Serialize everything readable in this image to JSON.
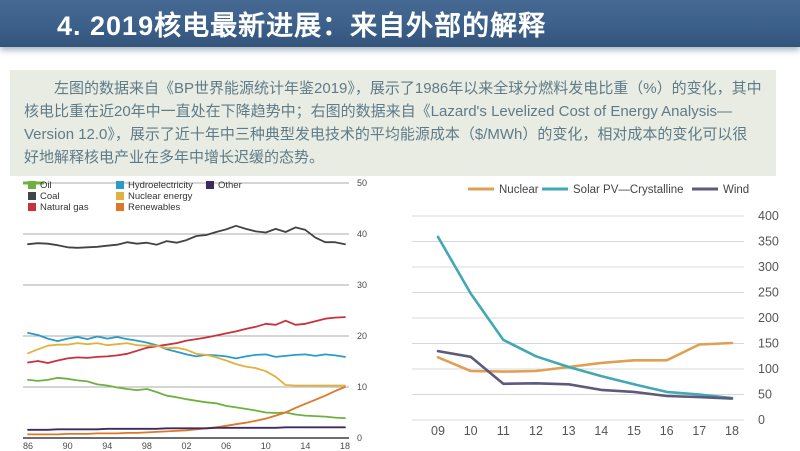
{
  "header": {
    "title": "4. 2019核电最新进展：来自外部的解释",
    "bg_color": "#3b608a",
    "text_color": "#ffffff"
  },
  "summary": {
    "text": "左图的数据来自《BP世界能源统计年鉴2019》，展示了1986年以来全球分燃料发电比重（%）的变化，其中核电比重在近20年中一直处在下降趋势中；右图的数据来自《Lazard's Levelized Cost of Energy Analysis—Version 12.0》，展示了近十年中三种典型发电技术的平均能源成本（$/MWh）的变化，相对成本的变化可以很好地解释核电产业在多年中增长迟缓的态势。",
    "bg_color": "#e8ece2",
    "text_color": "#5e7b8a"
  },
  "chart_data": [
    {
      "type": "line",
      "name": "bp-fuel-share",
      "title": "",
      "xlabel": "",
      "ylabel": "",
      "x_start_year": 1986,
      "x_end_year": 2018,
      "x_ticks": [
        "86",
        "90",
        "94",
        "98",
        "02",
        "06",
        "10",
        "14",
        "18"
      ],
      "ylim": [
        0,
        50
      ],
      "y_ticks": [
        0,
        10,
        20,
        30,
        40,
        50
      ],
      "grid": "horizontal",
      "legend_position": "top-left",
      "series": [
        {
          "name": "Oil",
          "color": "#6fb041",
          "values": [
            11.4,
            11.2,
            11.4,
            11.8,
            11.6,
            11.3,
            11.1,
            10.5,
            10.3,
            9.9,
            9.6,
            9.4,
            9.6,
            9.0,
            8.3,
            8.0,
            7.6,
            7.3,
            7.0,
            6.8,
            6.3,
            6.0,
            5.7,
            5.4,
            5.0,
            4.9,
            5.0,
            4.6,
            4.4,
            4.3,
            4.2,
            4.0,
            3.9
          ]
        },
        {
          "name": "Coal",
          "color": "#414345",
          "values": [
            38.0,
            38.2,
            38.1,
            37.8,
            37.4,
            37.3,
            37.4,
            37.5,
            37.7,
            37.9,
            38.4,
            38.1,
            38.3,
            37.9,
            38.6,
            38.3,
            38.8,
            39.6,
            39.8,
            40.4,
            40.9,
            41.6,
            41.0,
            40.5,
            40.3,
            41.0,
            40.4,
            41.3,
            40.8,
            39.3,
            38.4,
            38.4,
            38.0
          ]
        },
        {
          "name": "Natural gas",
          "color": "#c9313c",
          "values": [
            14.8,
            15.1,
            14.7,
            15.2,
            15.6,
            15.8,
            15.7,
            15.9,
            16.0,
            16.2,
            16.5,
            17.1,
            17.7,
            18.0,
            18.3,
            18.6,
            19.1,
            19.4,
            19.7,
            20.1,
            20.5,
            20.9,
            21.4,
            21.8,
            22.4,
            22.2,
            23.0,
            22.2,
            22.4,
            22.9,
            23.4,
            23.6,
            23.7
          ]
        },
        {
          "name": "Hydroelectricity",
          "color": "#2b9cc9",
          "values": [
            20.6,
            20.2,
            19.5,
            19.0,
            19.5,
            19.8,
            19.4,
            19.9,
            19.5,
            19.8,
            19.4,
            19.1,
            18.7,
            18.2,
            17.4,
            16.9,
            16.4,
            16.0,
            16.3,
            16.2,
            16.0,
            15.6,
            16.0,
            16.3,
            16.4,
            15.9,
            16.1,
            16.3,
            16.4,
            16.1,
            16.4,
            16.2,
            15.9
          ]
        },
        {
          "name": "Nuclear energy",
          "color": "#e2b23e",
          "values": [
            16.6,
            17.4,
            18.1,
            18.3,
            18.3,
            18.6,
            18.4,
            18.6,
            18.2,
            18.4,
            18.6,
            18.2,
            18.1,
            18.1,
            17.6,
            17.7,
            17.3,
            16.5,
            16.3,
            15.8,
            15.2,
            14.5,
            14.0,
            13.7,
            13.1,
            12.0,
            10.4,
            10.3,
            10.3,
            10.3,
            10.3,
            10.3,
            10.3
          ]
        },
        {
          "name": "Renewables",
          "color": "#df7726",
          "values": [
            0.7,
            0.7,
            0.7,
            0.7,
            0.8,
            0.8,
            0.8,
            0.9,
            0.9,
            0.9,
            1.0,
            1.0,
            1.1,
            1.2,
            1.3,
            1.4,
            1.5,
            1.7,
            1.9,
            2.1,
            2.4,
            2.7,
            3.0,
            3.4,
            3.8,
            4.4,
            5.0,
            5.9,
            6.7,
            7.5,
            8.3,
            9.2,
            10.0
          ]
        },
        {
          "name": "Other",
          "color": "#3f2a60",
          "values": [
            1.6,
            1.6,
            1.6,
            1.7,
            1.7,
            1.7,
            1.7,
            1.7,
            1.8,
            1.8,
            1.8,
            1.8,
            1.8,
            1.8,
            1.9,
            1.9,
            1.9,
            1.9,
            1.9,
            2.0,
            2.0,
            2.0,
            2.0,
            2.0,
            2.0,
            2.0,
            2.1,
            2.1,
            2.1,
            2.1,
            2.1,
            2.1,
            2.1
          ]
        }
      ]
    },
    {
      "type": "line",
      "name": "lazard-lcoe",
      "title": "",
      "xlabel": "",
      "ylabel": "",
      "x_ticks": [
        "09",
        "10",
        "11",
        "12",
        "13",
        "14",
        "15",
        "16",
        "17",
        "18"
      ],
      "ylim": [
        0,
        400
      ],
      "y_ticks": [
        0,
        50,
        100,
        150,
        200,
        250,
        300,
        350,
        400
      ],
      "grid": "horizontal",
      "legend_position": "top-center",
      "series": [
        {
          "name": "Nuclear",
          "color": "#e0a053",
          "values": [
            123,
            96,
            95,
            96,
            104,
            112,
            117,
            117,
            148,
            151
          ]
        },
        {
          "name": "Solar PV—Crystalline",
          "color": "#41a8b4",
          "values": [
            359,
            248,
            157,
            125,
            104,
            86,
            70,
            55,
            50,
            43
          ]
        },
        {
          "name": "Wind",
          "color": "#5d5a7b",
          "values": [
            135,
            124,
            71,
            72,
            70,
            59,
            55,
            47,
            45,
            42
          ]
        }
      ]
    }
  ]
}
